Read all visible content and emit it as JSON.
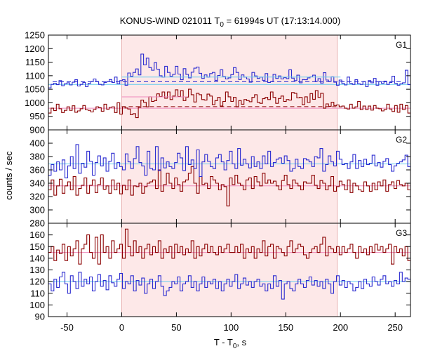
{
  "chart_data": {
    "type": "line",
    "title_main": "KONUS-WIND 021011 T",
    "title_sub": "0",
    "title_rest": " = 61994s UT (17:13:14.000)",
    "xlabel_main": "T - T",
    "xlabel_sub": "0",
    "xlabel_rest": ", s",
    "ylabel": "counts / sec",
    "xlim": [
      -67,
      264
    ],
    "x_ticks": [
      -50,
      0,
      50,
      100,
      150,
      200,
      250
    ],
    "highlight_interval": [
      0,
      197
    ],
    "colors": {
      "blue": "#2b2bd0",
      "red": "#8b0000",
      "highlight": "#fde8e8",
      "light_blue": "#66ccee",
      "light_red": "#ee88bb"
    },
    "bin_width": 2.944,
    "panels": [
      {
        "name": "G1",
        "ylim": [
          900,
          1250
        ],
        "y_ticks": [
          900,
          950,
          1000,
          1050,
          1100,
          1150,
          1200,
          1250
        ],
        "blue_bg": 1068,
        "red_bg": 980,
        "blue_burst_level": 1095,
        "red_burst_level": 1022,
        "red_bump_level": 1030,
        "blue_values": [
          1055,
          1068,
          1072,
          1067,
          1082,
          1063,
          1070,
          1074,
          1066,
          1076,
          1085,
          1062,
          1068,
          1075,
          1060,
          1072,
          1078,
          1088,
          1079,
          1068,
          1066,
          1075,
          1078,
          1086,
          1075,
          1095,
          1070,
          1082,
          1085,
          1065,
          1110,
          1098,
          1112,
          1125,
          1103,
          1180,
          1140,
          1165,
          1130,
          1120,
          1148,
          1124,
          1100,
          1095,
          1135,
          1112,
          1098,
          1105,
          1135,
          1106,
          1085,
          1126,
          1105,
          1092,
          1113,
          1128,
          1132,
          1109,
          1090,
          1103,
          1095,
          1108,
          1112,
          1083,
          1101,
          1122,
          1097,
          1088,
          1092,
          1104,
          1130,
          1112,
          1086,
          1103,
          1095,
          1088,
          1076,
          1112,
          1099,
          1090,
          1095,
          1083,
          1108,
          1075,
          1078,
          1105,
          1090,
          1099,
          1088,
          1093,
          1089,
          1122,
          1091,
          1082,
          1102,
          1074,
          1086,
          1085,
          1092,
          1096,
          1102,
          1080,
          1089,
          1073,
          1111,
          1084,
          1079,
          1096,
          1076,
          1065,
          1084,
          1072,
          1066,
          1095,
          1072,
          1068,
          1085,
          1070,
          1068,
          1078,
          1060,
          1082,
          1074,
          1090,
          1065,
          1078,
          1072,
          1080,
          1068,
          1075,
          1098,
          1072,
          1065,
          1070,
          1074,
          1120,
          1067
        ],
        "red_values": [
          962,
          980,
          971,
          995,
          978,
          964,
          972,
          985,
          972,
          989,
          965,
          970,
          978,
          990,
          974,
          972,
          966,
          975,
          985,
          982,
          969,
          995,
          976,
          983,
          985,
          964,
          1000,
          958,
          985,
          981,
          977,
          956,
          960,
          945,
          983,
          1010,
          1002,
          985,
          1022,
          1005,
          1008,
          1033,
          1023,
          1040,
          1017,
          1040,
          1012,
          1025,
          1048,
          1023,
          1045,
          1008,
          1021,
          1050,
          1030,
          1003,
          1035,
          1030,
          1012,
          1010,
          1032,
          1025,
          993,
          1008,
          1020,
          988,
          1005,
          1040,
          1022,
          1005,
          1020,
          985,
          1008,
          995,
          1012,
          1008,
          1004,
          1020,
          1030,
          1002,
          998,
          1015,
          1020,
          1012,
          1040,
          1020,
          998,
          1016,
          1025,
          1005,
          1012,
          1010,
          1038,
          1035,
          1018,
          1020,
          993,
          1022,
          1001,
          1034,
          1013,
          1045,
          1020,
          1035,
          980,
          996,
          987,
          1002,
          990,
          992,
          985,
          988,
          980,
          977,
          995,
          980,
          985,
          1005,
          975,
          988,
          975,
          988,
          973,
          990,
          980,
          978,
          970,
          975,
          995,
          977,
          968,
          990,
          965,
          995,
          975,
          990,
          962
        ]
      },
      {
        "name": "G2",
        "ylim": [
          280,
          420
        ],
        "y_ticks": [
          280,
          300,
          320,
          340,
          360,
          380,
          400
        ],
        "blue_bg": 369,
        "red_bg": 336,
        "blue_values": [
          352,
          368,
          358,
          372,
          360,
          375,
          348,
          366,
          380,
          362,
          398,
          355,
          370,
          364,
          388,
          373,
          352,
          371,
          381,
          366,
          378,
          358,
          373,
          385,
          362,
          371,
          365,
          360,
          384,
          372,
          362,
          377,
          395,
          371,
          366,
          352,
          388,
          362,
          360,
          395,
          359,
          378,
          363,
          372,
          365,
          362,
          371,
          385,
          378,
          359,
          395,
          368,
          375,
          362,
          390,
          350,
          372,
          383,
          373,
          365,
          362,
          378,
          383,
          372,
          360,
          374,
          388,
          369,
          362,
          392,
          367,
          376,
          369,
          363,
          380,
          365,
          372,
          362,
          381,
          369,
          388,
          365,
          371,
          376,
          378,
          370,
          381,
          374,
          358,
          362,
          376,
          365,
          362,
          377,
          375,
          372,
          365,
          380,
          378,
          392,
          358,
          368,
          381,
          372,
          366,
          388,
          376,
          368,
          370,
          362,
          372,
          383,
          362,
          374,
          365,
          376,
          368,
          370,
          382,
          366,
          371,
          364,
          373,
          377,
          368,
          358,
          366,
          370,
          372,
          375,
          382,
          365
        ],
        "red_values": [
          330,
          345,
          322,
          336,
          346,
          325,
          336,
          342,
          330,
          350,
          322,
          332,
          337,
          348,
          325,
          337,
          345,
          326,
          338,
          348,
          331,
          336,
          325,
          345,
          330,
          340,
          324,
          337,
          330,
          345,
          322,
          336,
          335,
          340,
          325,
          335,
          340,
          342,
          345,
          332,
          360,
          328,
          338,
          355,
          340,
          332,
          348,
          338,
          328,
          342,
          345,
          355,
          365,
          340,
          325,
          350,
          338,
          340,
          332,
          350,
          345,
          340,
          330,
          338,
          335,
          306,
          348,
          338,
          352,
          340,
          337,
          330,
          345,
          348,
          332,
          350,
          342,
          336,
          355,
          340,
          345,
          340,
          343,
          336,
          330,
          344,
          352,
          338,
          332,
          345,
          340,
          336,
          330,
          342,
          340,
          340,
          352,
          337,
          332,
          344,
          340,
          330,
          336,
          350,
          328,
          335,
          343,
          338,
          330,
          345,
          326,
          340,
          336,
          330,
          328,
          342,
          336,
          328,
          340,
          330,
          342,
          336,
          345,
          328,
          338,
          342,
          332,
          344,
          338,
          336,
          340,
          330
        ]
      },
      {
        "name": "G3",
        "ylim": [
          90,
          170
        ],
        "y_ticks": [
          90,
          100,
          110,
          120,
          130,
          140,
          150,
          160
        ],
        "blue_bg": 120,
        "red_bg": 145,
        "blue_values": [
          118,
          112,
          122,
          115,
          124,
          128,
          118,
          110,
          125,
          120,
          114,
          128,
          116,
          122,
          118,
          124,
          112,
          120,
          126,
          116,
          121,
          113,
          125,
          119,
          116,
          122,
          127,
          114,
          120,
          118,
          125,
          112,
          121,
          117,
          123,
          110,
          118,
          122,
          114,
          120,
          125,
          116,
          108,
          112,
          115,
          120,
          118,
          124,
          112,
          118,
          120,
          125,
          115,
          120,
          112,
          118,
          124,
          115,
          120,
          118,
          122,
          114,
          120,
          112,
          118,
          122,
          116,
          120,
          126,
          114,
          118,
          123,
          117,
          120,
          115,
          120,
          122,
          116,
          118,
          112,
          118,
          114,
          125,
          116,
          121,
          105,
          118,
          120,
          114,
          112,
          118,
          122,
          118,
          115,
          121,
          124,
          117,
          121,
          116,
          120,
          114,
          122,
          118,
          110,
          120,
          125,
          117,
          121,
          115,
          120,
          118,
          112,
          115,
          120,
          114,
          122,
          118,
          116,
          124,
          120,
          117,
          122,
          125,
          118,
          120,
          116,
          121,
          118,
          128,
          120,
          123,
          122
        ],
        "red_values": [
          145,
          150,
          138,
          147,
          144,
          152,
          138,
          150,
          142,
          148,
          155,
          135,
          148,
          152,
          160,
          145,
          140,
          158,
          135,
          160,
          145,
          150,
          140,
          155,
          145,
          148,
          152,
          140,
          165,
          150,
          142,
          155,
          145,
          150,
          140,
          148,
          152,
          143,
          150,
          145,
          155,
          140,
          148,
          145,
          150,
          140,
          152,
          145,
          150,
          143,
          148,
          145,
          155,
          140,
          150,
          142,
          148,
          152,
          145,
          150,
          145,
          143,
          150,
          145,
          148,
          152,
          145,
          145,
          150,
          145,
          152,
          140,
          148,
          145,
          150,
          140,
          148,
          145,
          155,
          142,
          150,
          152,
          140,
          150,
          148,
          145,
          142,
          150,
          155,
          145,
          148,
          152,
          150,
          143,
          140,
          145,
          148,
          150,
          145,
          152,
          158,
          142,
          150,
          148,
          145,
          150,
          143,
          150,
          145,
          148,
          152,
          145,
          140,
          150,
          145,
          148,
          143,
          150,
          145,
          152,
          147,
          150,
          145,
          148,
          152,
          135,
          150,
          145,
          148,
          142,
          150,
          138
        ]
      }
    ]
  }
}
